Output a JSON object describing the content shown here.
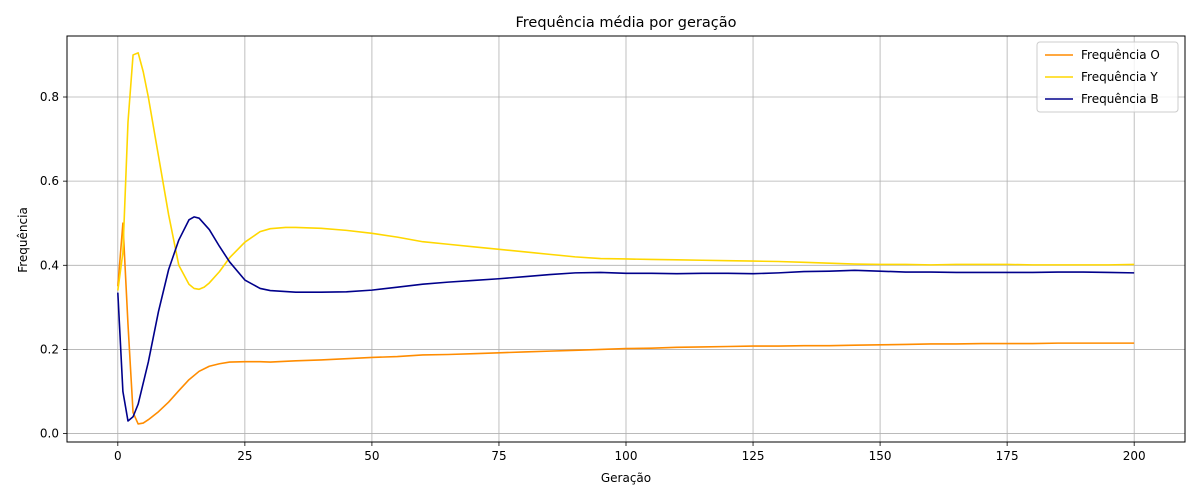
{
  "chart_data": {
    "type": "line",
    "title": "Frequência média por geração",
    "xlabel": "Geração",
    "ylabel": "Frequência",
    "xlim": [
      -10,
      210
    ],
    "ylim": [
      -0.02,
      0.945
    ],
    "xticks": [
      0,
      25,
      50,
      75,
      100,
      125,
      150,
      175,
      200
    ],
    "yticks": [
      0.0,
      0.2,
      0.4,
      0.6,
      0.8
    ],
    "ytick_labels": [
      "0.0",
      "0.2",
      "0.4",
      "0.6",
      "0.8"
    ],
    "grid": true,
    "legend_position": "top-right",
    "series": [
      {
        "name": "Frequência O",
        "color": "#ff8c00",
        "x": [
          0,
          1,
          2,
          3,
          4,
          5,
          6,
          8,
          10,
          12,
          14,
          16,
          18,
          20,
          22,
          25,
          28,
          30,
          35,
          40,
          45,
          50,
          55,
          60,
          65,
          70,
          75,
          80,
          85,
          90,
          95,
          100,
          105,
          110,
          115,
          120,
          125,
          130,
          135,
          140,
          145,
          150,
          155,
          160,
          165,
          170,
          175,
          180,
          185,
          190,
          195,
          200
        ],
        "values": [
          0.35,
          0.5,
          0.26,
          0.05,
          0.023,
          0.025,
          0.033,
          0.052,
          0.075,
          0.102,
          0.128,
          0.148,
          0.16,
          0.166,
          0.17,
          0.171,
          0.171,
          0.17,
          0.173,
          0.175,
          0.178,
          0.181,
          0.183,
          0.187,
          0.188,
          0.19,
          0.192,
          0.194,
          0.196,
          0.198,
          0.2,
          0.202,
          0.203,
          0.205,
          0.206,
          0.207,
          0.208,
          0.208,
          0.209,
          0.209,
          0.21,
          0.211,
          0.212,
          0.213,
          0.213,
          0.214,
          0.214,
          0.214,
          0.215,
          0.215,
          0.215,
          0.215
        ]
      },
      {
        "name": "Frequência Y",
        "color": "#ffd700",
        "x": [
          0,
          1,
          2,
          3,
          4,
          5,
          6,
          8,
          10,
          12,
          14,
          15,
          16,
          17,
          18,
          20,
          22,
          25,
          28,
          30,
          33,
          35,
          40,
          45,
          50,
          55,
          60,
          65,
          70,
          75,
          80,
          85,
          90,
          95,
          100,
          105,
          110,
          115,
          120,
          125,
          130,
          135,
          140,
          145,
          150,
          155,
          160,
          165,
          170,
          175,
          180,
          185,
          190,
          195,
          200
        ],
        "values": [
          0.34,
          0.43,
          0.74,
          0.9,
          0.905,
          0.86,
          0.8,
          0.66,
          0.52,
          0.4,
          0.355,
          0.345,
          0.343,
          0.348,
          0.358,
          0.385,
          0.418,
          0.455,
          0.48,
          0.487,
          0.49,
          0.49,
          0.488,
          0.483,
          0.476,
          0.467,
          0.456,
          0.45,
          0.444,
          0.438,
          0.432,
          0.426,
          0.42,
          0.416,
          0.415,
          0.414,
          0.413,
          0.412,
          0.411,
          0.41,
          0.409,
          0.407,
          0.405,
          0.403,
          0.402,
          0.402,
          0.401,
          0.402,
          0.402,
          0.402,
          0.401,
          0.401,
          0.401,
          0.401,
          0.402
        ]
      },
      {
        "name": "Frequência B",
        "color": "#00008b",
        "x": [
          0,
          1,
          2,
          3,
          4,
          5,
          6,
          8,
          10,
          12,
          14,
          15,
          16,
          18,
          20,
          22,
          25,
          28,
          30,
          35,
          40,
          45,
          50,
          55,
          60,
          65,
          70,
          75,
          80,
          85,
          90,
          95,
          100,
          105,
          110,
          115,
          120,
          125,
          130,
          135,
          140,
          145,
          150,
          155,
          160,
          165,
          170,
          175,
          180,
          185,
          190,
          195,
          200
        ],
        "values": [
          0.335,
          0.1,
          0.03,
          0.04,
          0.07,
          0.12,
          0.17,
          0.29,
          0.39,
          0.46,
          0.508,
          0.515,
          0.512,
          0.485,
          0.445,
          0.408,
          0.365,
          0.345,
          0.34,
          0.336,
          0.336,
          0.337,
          0.341,
          0.348,
          0.355,
          0.36,
          0.364,
          0.368,
          0.373,
          0.378,
          0.382,
          0.383,
          0.381,
          0.381,
          0.38,
          0.381,
          0.381,
          0.38,
          0.382,
          0.385,
          0.386,
          0.388,
          0.386,
          0.384,
          0.384,
          0.383,
          0.383,
          0.383,
          0.383,
          0.384,
          0.384,
          0.383,
          0.382
        ]
      }
    ]
  }
}
